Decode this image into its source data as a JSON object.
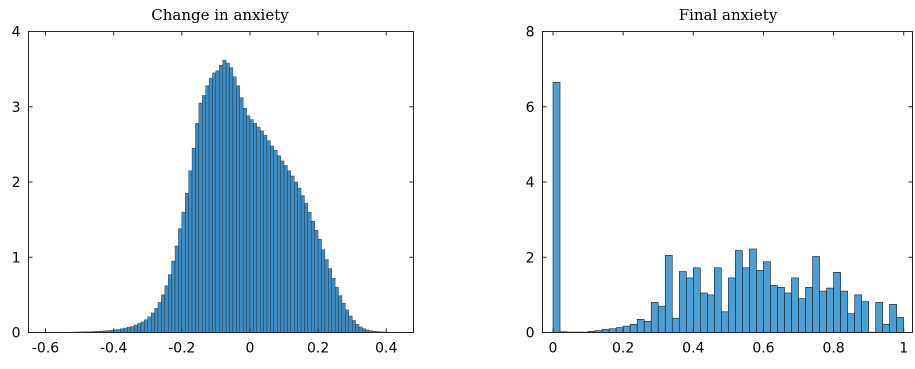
{
  "chart_data": [
    {
      "type": "bar",
      "subtype": "histogram",
      "title": "Change in anxiety",
      "xlabel": "",
      "ylabel": "",
      "xlim": [
        -0.65,
        0.48
      ],
      "ylim": [
        0,
        4
      ],
      "xticks": [
        -0.6,
        -0.4,
        -0.2,
        0,
        0.2,
        0.4
      ],
      "xtick_labels": [
        "-0.6",
        "-0.4",
        "-0.2",
        "0",
        "0.2",
        "0.4"
      ],
      "yticks": [
        0,
        1,
        2,
        3,
        4
      ],
      "ytick_labels": [
        "0",
        "1",
        "2",
        "3",
        "4"
      ],
      "bar_color": "#3b8cc4",
      "edge_color": "#1a1a1a",
      "bin_width": 0.01,
      "bin_centers": [
        -0.625,
        -0.615,
        -0.605,
        -0.595,
        -0.585,
        -0.575,
        -0.565,
        -0.555,
        -0.545,
        -0.535,
        -0.525,
        -0.515,
        -0.505,
        -0.495,
        -0.485,
        -0.475,
        -0.465,
        -0.455,
        -0.445,
        -0.435,
        -0.425,
        -0.415,
        -0.405,
        -0.395,
        -0.385,
        -0.375,
        -0.365,
        -0.355,
        -0.345,
        -0.335,
        -0.325,
        -0.315,
        -0.305,
        -0.295,
        -0.285,
        -0.275,
        -0.265,
        -0.255,
        -0.245,
        -0.235,
        -0.225,
        -0.215,
        -0.205,
        -0.195,
        -0.185,
        -0.175,
        -0.165,
        -0.155,
        -0.145,
        -0.135,
        -0.125,
        -0.115,
        -0.105,
        -0.095,
        -0.085,
        -0.075,
        -0.065,
        -0.055,
        -0.045,
        -0.035,
        -0.025,
        -0.015,
        -0.005,
        0.005,
        0.015,
        0.025,
        0.035,
        0.045,
        0.055,
        0.065,
        0.075,
        0.085,
        0.095,
        0.105,
        0.115,
        0.125,
        0.135,
        0.145,
        0.155,
        0.165,
        0.175,
        0.185,
        0.195,
        0.205,
        0.215,
        0.225,
        0.235,
        0.245,
        0.255,
        0.265,
        0.275,
        0.285,
        0.295,
        0.305,
        0.315,
        0.325,
        0.335,
        0.345,
        0.355,
        0.365,
        0.375,
        0.385,
        0.395,
        0.405,
        0.415,
        0.425,
        0.435,
        0.445,
        0.455
      ],
      "values": [
        0.003,
        0.003,
        0.003,
        0.003,
        0.003,
        0.003,
        0.004,
        0.004,
        0.004,
        0.005,
        0.005,
        0.006,
        0.007,
        0.008,
        0.009,
        0.01,
        0.012,
        0.014,
        0.016,
        0.019,
        0.022,
        0.026,
        0.03,
        0.035,
        0.04,
        0.05,
        0.06,
        0.07,
        0.08,
        0.1,
        0.12,
        0.14,
        0.17,
        0.21,
        0.26,
        0.32,
        0.4,
        0.5,
        0.62,
        0.77,
        0.95,
        1.15,
        1.38,
        1.6,
        1.85,
        2.15,
        2.45,
        2.78,
        3.05,
        3.15,
        3.28,
        3.38,
        3.45,
        3.48,
        3.55,
        3.62,
        3.58,
        3.52,
        3.4,
        3.28,
        3.12,
        2.98,
        2.88,
        2.83,
        2.78,
        2.73,
        2.68,
        2.62,
        2.55,
        2.48,
        2.42,
        2.35,
        2.28,
        2.22,
        2.15,
        2.08,
        2.0,
        1.92,
        1.82,
        1.72,
        1.6,
        1.48,
        1.36,
        1.24,
        1.1,
        0.97,
        0.85,
        0.72,
        0.6,
        0.49,
        0.39,
        0.3,
        0.22,
        0.16,
        0.11,
        0.075,
        0.05,
        0.035,
        0.025,
        0.018,
        0.013,
        0.01,
        0.007,
        0.005,
        0.004,
        0.003,
        0.003,
        0.003,
        0.003,
        0.003
      ]
    },
    {
      "type": "bar",
      "subtype": "histogram",
      "title": "Final anxiety",
      "xlabel": "",
      "ylabel": "",
      "xlim": [
        -0.03,
        1.025
      ],
      "ylim": [
        0,
        8
      ],
      "xticks": [
        0,
        0.2,
        0.4,
        0.6,
        0.8,
        1
      ],
      "xtick_labels": [
        "0",
        "0.2",
        "0.4",
        "0.6",
        "0.8",
        "1"
      ],
      "yticks": [
        0,
        2,
        4,
        6,
        8
      ],
      "ytick_labels": [
        "0",
        "2",
        "4",
        "6",
        "8"
      ],
      "bar_color": "#4a9fd4",
      "edge_color": "#1a1a1a",
      "bin_width": 0.02,
      "bin_centers": [
        0.01,
        0.03,
        0.05,
        0.07,
        0.09,
        0.11,
        0.13,
        0.15,
        0.17,
        0.19,
        0.21,
        0.23,
        0.25,
        0.27,
        0.29,
        0.31,
        0.33,
        0.35,
        0.37,
        0.39,
        0.41,
        0.43,
        0.45,
        0.47,
        0.49,
        0.51,
        0.53,
        0.55,
        0.57,
        0.59,
        0.61,
        0.63,
        0.65,
        0.67,
        0.69,
        0.71,
        0.73,
        0.75,
        0.77,
        0.79,
        0.81,
        0.83,
        0.85,
        0.87,
        0.89,
        0.91,
        0.93,
        0.95,
        0.97,
        0.99
      ],
      "values": [
        6.65,
        0.02,
        0.01,
        0.01,
        0.01,
        0.03,
        0.05,
        0.08,
        0.1,
        0.13,
        0.17,
        0.22,
        0.35,
        0.3,
        0.8,
        0.7,
        2.05,
        0.38,
        1.62,
        1.45,
        1.72,
        1.05,
        1.0,
        1.72,
        0.55,
        1.45,
        2.18,
        1.72,
        2.22,
        1.65,
        1.88,
        1.25,
        1.2,
        1.05,
        1.45,
        0.9,
        1.2,
        2.02,
        1.1,
        1.18,
        1.6,
        1.1,
        0.5,
        1.0,
        0.82,
        0.01,
        0.8,
        0.22,
        0.75,
        0.4
      ]
    }
  ]
}
